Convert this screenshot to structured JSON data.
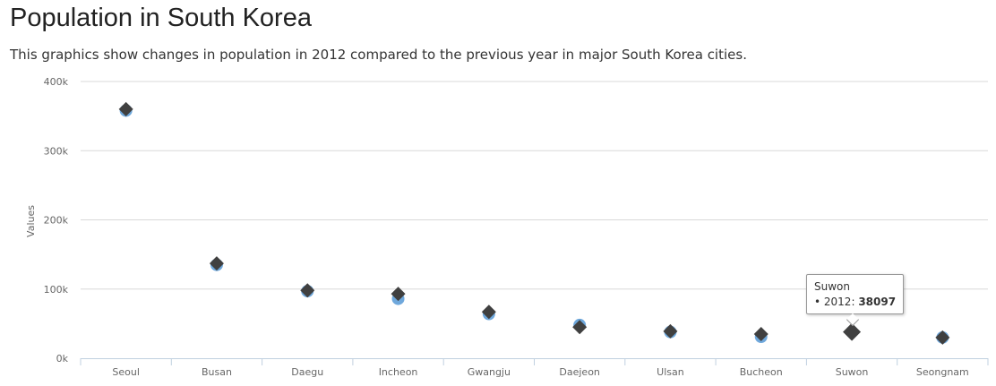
{
  "header": {
    "title": "Population in South Korea",
    "subtitle": "This graphics show changes in population in 2012 compared to the previous year in major South Korea cities."
  },
  "tooltip": {
    "city": "Suwon",
    "bullet": "•",
    "series_label": "2012:",
    "value": "38097"
  },
  "chart_data": {
    "type": "scatter",
    "categories": [
      "Seoul",
      "Busan",
      "Daegu",
      "Incheon",
      "Gwangju",
      "Daejeon",
      "Ulsan",
      "Bucheon",
      "Suwon",
      "Seongnam"
    ],
    "series": [
      {
        "values": [
          358000,
          135000,
          97000,
          86000,
          64000,
          48000,
          38000,
          31000,
          38097,
          30000
        ],
        "marker": "circle",
        "color": "#6fa8dc"
      },
      {
        "name": "2012",
        "values": [
          360000,
          137000,
          98000,
          93000,
          67000,
          45000,
          39000,
          35000,
          38097,
          30000
        ],
        "marker": "diamond",
        "color": "#404040"
      }
    ],
    "ylabel": "Values",
    "ylim": [
      0,
      400000
    ],
    "yticks": [
      0,
      100000,
      200000,
      300000,
      400000
    ],
    "ytick_labels": [
      "0k",
      "100k",
      "200k",
      "300k",
      "400k"
    ],
    "grid": true,
    "legend": "none"
  }
}
